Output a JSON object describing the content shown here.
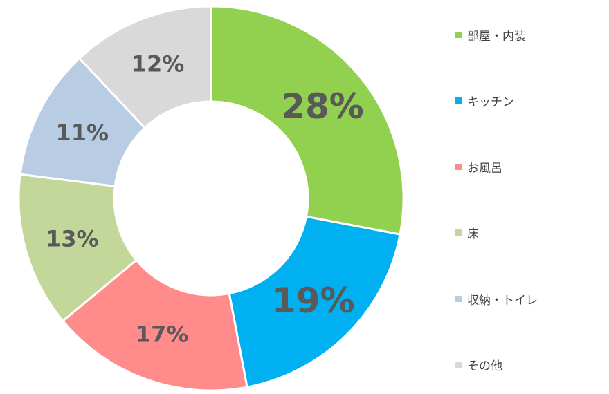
{
  "chart_data": {
    "type": "pie",
    "title": "",
    "categories": [
      "部屋・内装",
      "キッチン",
      "お風呂",
      "床",
      "収納・トイレ",
      "その他"
    ],
    "values": [
      28,
      19,
      17,
      13,
      11,
      12
    ],
    "value_labels": [
      "28%",
      "19%",
      "17%",
      "13%",
      "11%",
      "12%"
    ],
    "colors": [
      "#92d050",
      "#00b0f0",
      "#ff8b8b",
      "#c4d79b",
      "#b8cce4",
      "#d9d9d9"
    ],
    "donut": true,
    "legend_position": "right"
  }
}
